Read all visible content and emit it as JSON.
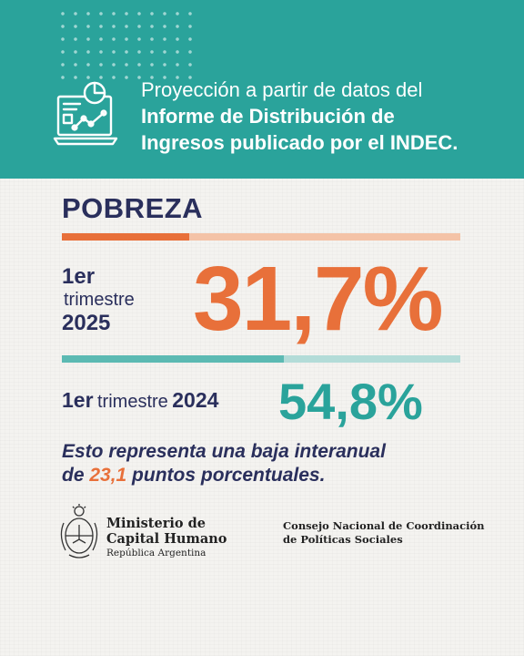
{
  "header": {
    "line1": "Proyección a partir de datos del",
    "line2": "Informe de Distribución de",
    "line3": "Ingresos publicado por el INDEC.",
    "icon": "report-chart-icon"
  },
  "indicator": {
    "title": "POBREZA",
    "current": {
      "period_line1": "1er",
      "period_line2": "trimestre",
      "period_line3": "2025",
      "value": "31,7%"
    },
    "previous": {
      "period_prefix": "1er",
      "period_word": "trimestre",
      "period_year": "2024",
      "value": "54,8%"
    },
    "note": {
      "before": "Esto representa una baja interanual",
      "de": "de ",
      "highlight": "23,1",
      "after": " puntos porcentuales."
    }
  },
  "footer": {
    "seal_icon": "coat-of-arms-icon",
    "ministry_line1": "Ministerio de",
    "ministry_line2": "Capital Humano",
    "ministry_line3": "República Argentina",
    "council_line1": "Consejo Nacional de Coordinación",
    "council_line2": "de Políticas Sociales"
  },
  "colors": {
    "teal": "#2aa39b",
    "orange": "#e8703a",
    "navy": "#2a2f5c"
  }
}
